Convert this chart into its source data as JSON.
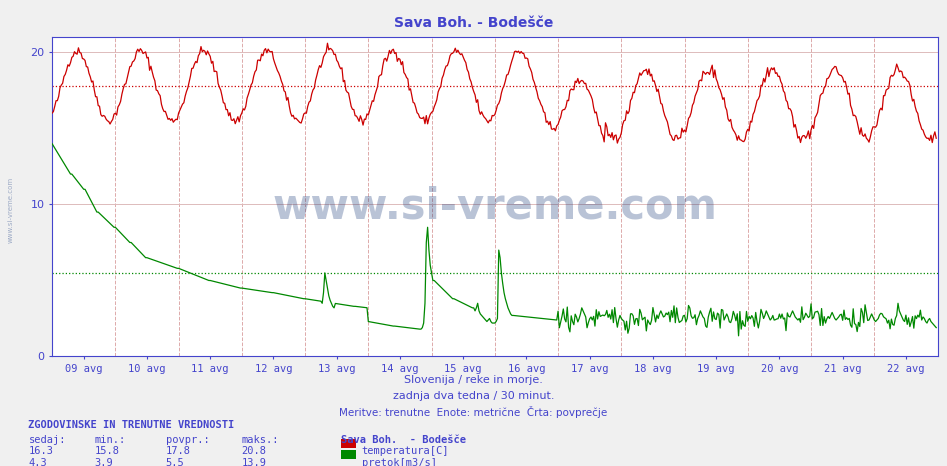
{
  "title": "Sava Boh. - Bodešče",
  "title_color": "#4444cc",
  "bg_color": "#f0f0f0",
  "plot_bg_color": "#ffffff",
  "xlabel_texts": [
    "09 avg",
    "10 avg",
    "11 avg",
    "12 avg",
    "13 avg",
    "14 avg",
    "15 avg",
    "16 avg",
    "17 avg",
    "18 avg",
    "19 avg",
    "20 avg",
    "21 avg",
    "22 avg"
  ],
  "ylim": [
    0,
    21
  ],
  "yticks": [
    0,
    10,
    20
  ],
  "temp_color": "#cc0000",
  "flow_color": "#008800",
  "avg_temp_color": "#cc0000",
  "avg_flow_color": "#008800",
  "avg_temp": 17.8,
  "avg_flow": 5.5,
  "subtitle1": "Slovenija / reke in morje.",
  "subtitle2": "zadnja dva tedna / 30 minut.",
  "subtitle3": "Meritve: trenutne  Enote: metrične  Črta: povprečje",
  "subtitle_color": "#4444cc",
  "watermark_text": "www.si-vreme.com",
  "watermark_color": "#1a3a7a",
  "legend_title": "Sava Boh.  - Bodešče",
  "info_header": "ZGODOVINSKE IN TRENUTNE VREDNOSTI",
  "info_color": "#4444cc",
  "temp_min": 15.8,
  "temp_avg": 17.8,
  "temp_max": 20.8,
  "temp_curr": 16.3,
  "flow_min": 3.9,
  "flow_avg": 5.5,
  "flow_max": 13.9,
  "flow_curr": 4.3,
  "vline_color": "#ddaaaa",
  "hgrid_color": "#ddbbbb",
  "n_points": 672
}
